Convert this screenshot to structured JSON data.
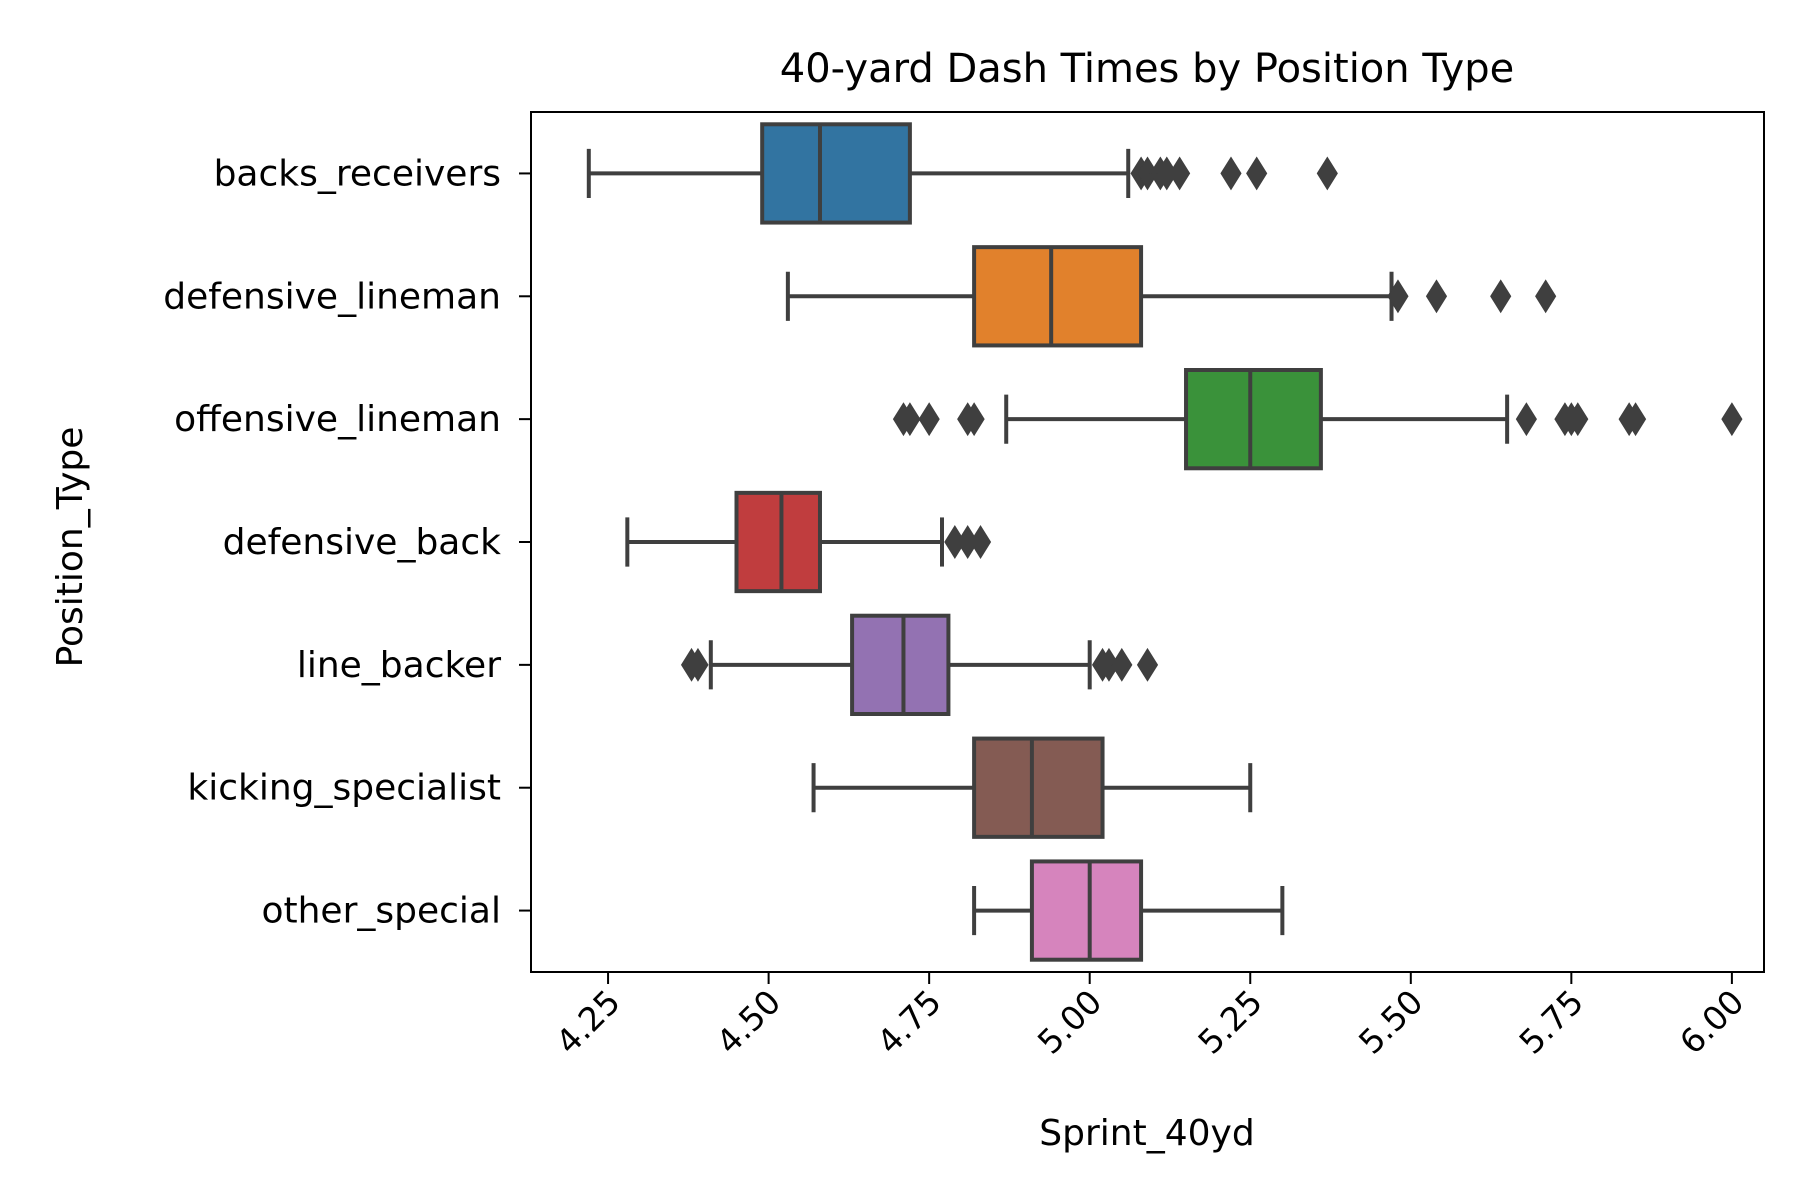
{
  "chart_data": {
    "type": "boxplot",
    "orientation": "horizontal",
    "title": "40-yard Dash Times by Position Type",
    "xlabel": "Sprint_40yd",
    "ylabel": "Position_Type",
    "xlim": [
      4.13,
      6.05
    ],
    "xticks": [
      4.25,
      4.5,
      4.75,
      5.0,
      5.25,
      5.5,
      5.75,
      6.0
    ],
    "xtick_labels": [
      "4.25",
      "4.50",
      "4.75",
      "5.00",
      "5.25",
      "5.50",
      "5.75",
      "6.00"
    ],
    "grid": false,
    "categories": [
      "backs_receivers",
      "defensive_lineman",
      "offensive_lineman",
      "defensive_back",
      "line_backer",
      "kicking_specialist",
      "other_special"
    ],
    "series": [
      {
        "category": "backs_receivers",
        "color": "#3274a1",
        "whisker_low": 4.22,
        "q1": 4.49,
        "median": 4.58,
        "q3": 4.72,
        "whisker_high": 5.06,
        "outliers": [
          5.08,
          5.09,
          5.11,
          5.12,
          5.14,
          5.22,
          5.26,
          5.37
        ]
      },
      {
        "category": "defensive_lineman",
        "color": "#e1812c",
        "whisker_low": 4.53,
        "q1": 4.82,
        "median": 4.94,
        "q3": 5.08,
        "whisker_high": 5.47,
        "outliers": [
          5.48,
          5.54,
          5.64,
          5.71
        ]
      },
      {
        "category": "offensive_lineman",
        "color": "#3a923a",
        "whisker_low": 4.87,
        "q1": 5.15,
        "median": 5.25,
        "q3": 5.36,
        "whisker_high": 5.65,
        "outliers": [
          4.71,
          4.72,
          4.75,
          4.81,
          4.82,
          5.68,
          5.74,
          5.75,
          5.76,
          5.84,
          5.85,
          6.0
        ]
      },
      {
        "category": "defensive_back",
        "color": "#c03d3e",
        "whisker_low": 4.28,
        "q1": 4.45,
        "median": 4.52,
        "q3": 4.58,
        "whisker_high": 4.77,
        "outliers": [
          4.79,
          4.81,
          4.83
        ]
      },
      {
        "category": "line_backer",
        "color": "#9372b2",
        "whisker_low": 4.41,
        "q1": 4.63,
        "median": 4.71,
        "q3": 4.78,
        "whisker_high": 5.0,
        "outliers": [
          4.38,
          4.39,
          5.02,
          5.03,
          5.05,
          5.09
        ]
      },
      {
        "category": "kicking_specialist",
        "color": "#845b53",
        "whisker_low": 4.57,
        "q1": 4.82,
        "median": 4.91,
        "q3": 5.02,
        "whisker_high": 5.25,
        "outliers": []
      },
      {
        "category": "other_special",
        "color": "#d684bd",
        "whisker_low": 4.82,
        "q1": 4.91,
        "median": 5.0,
        "q3": 5.08,
        "whisker_high": 5.3,
        "outliers": []
      }
    ],
    "line_color": "#3f3f3f"
  }
}
